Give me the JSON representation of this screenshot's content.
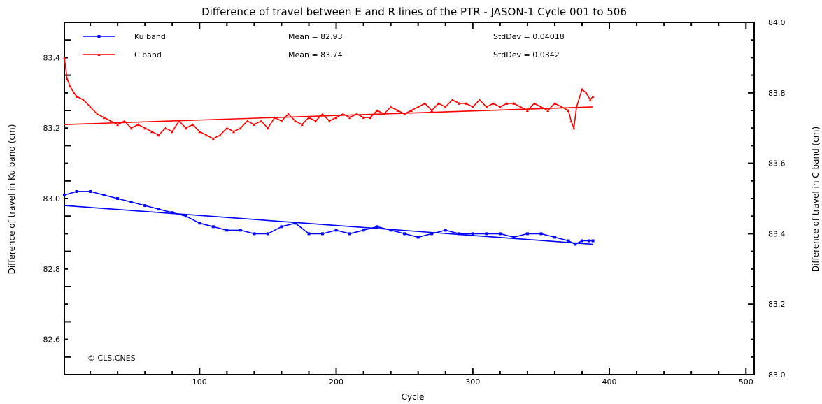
{
  "chart_data": {
    "type": "line",
    "title": "Difference of travel between E and R lines of the PTR - JASON-1 Cycle 001 to 506",
    "xlabel": "Cycle",
    "ylabel_left": "Difference of travel in Ku band (cm)",
    "ylabel_right": "Difference of travel in C band (cm)",
    "xlim": [
      1,
      506
    ],
    "ylim_left": [
      82.5,
      83.5
    ],
    "ylim_right": [
      83.0,
      84.0
    ],
    "x_ticks": [
      "100",
      "200",
      "300",
      "400",
      "500"
    ],
    "y_ticks_left": [
      "82.6",
      "82.8",
      "83.0",
      "83.2",
      "83.4"
    ],
    "y_ticks_right": [
      "83.0",
      "83.2",
      "83.4",
      "83.6",
      "83.8",
      "84.0"
    ],
    "grid": false,
    "legend_position": "top-left",
    "copyright": "© CLS,CNES",
    "series": [
      {
        "name": "Ku band",
        "axis": "left",
        "color": "#0000ff",
        "marker": "square",
        "mean_label": "Mean = 82.93",
        "std_label": "StdDev = 0.04018",
        "x": [
          1,
          10,
          20,
          30,
          40,
          50,
          60,
          70,
          80,
          90,
          100,
          110,
          120,
          130,
          140,
          150,
          160,
          170,
          180,
          190,
          200,
          210,
          220,
          230,
          240,
          250,
          260,
          270,
          280,
          290,
          300,
          310,
          320,
          330,
          340,
          350,
          360,
          370,
          375,
          380,
          385,
          388
        ],
        "values": [
          83.01,
          83.02,
          83.02,
          83.01,
          83.0,
          82.99,
          82.98,
          82.97,
          82.96,
          82.95,
          82.93,
          82.92,
          82.91,
          82.91,
          82.9,
          82.9,
          82.92,
          82.93,
          82.9,
          82.9,
          82.91,
          82.9,
          82.91,
          82.92,
          82.91,
          82.9,
          82.89,
          82.9,
          82.91,
          82.9,
          82.9,
          82.9,
          82.9,
          82.89,
          82.9,
          82.9,
          82.89,
          82.88,
          82.87,
          82.88,
          82.88,
          82.88
        ],
        "trend": {
          "x": [
            1,
            388
          ],
          "values": [
            82.98,
            82.87
          ]
        }
      },
      {
        "name": "C band",
        "axis": "right",
        "color": "#ff0000",
        "marker": "triangle",
        "mean_label": "Mean = 83.74",
        "std_label": "StdDev = 0.0342",
        "x": [
          1,
          3,
          5,
          8,
          10,
          15,
          20,
          25,
          30,
          35,
          40,
          45,
          50,
          55,
          60,
          65,
          70,
          75,
          80,
          85,
          90,
          95,
          100,
          105,
          110,
          115,
          120,
          125,
          130,
          135,
          140,
          145,
          150,
          155,
          160,
          165,
          170,
          175,
          180,
          185,
          190,
          195,
          200,
          205,
          210,
          215,
          220,
          225,
          230,
          235,
          240,
          245,
          250,
          255,
          260,
          265,
          270,
          275,
          280,
          285,
          290,
          295,
          300,
          305,
          310,
          315,
          320,
          325,
          330,
          335,
          340,
          345,
          350,
          355,
          360,
          365,
          370,
          372,
          374,
          376,
          380,
          383,
          386,
          388
        ],
        "values": [
          83.9,
          83.84,
          83.82,
          83.8,
          83.79,
          83.78,
          83.76,
          83.74,
          83.73,
          83.72,
          83.71,
          83.72,
          83.7,
          83.71,
          83.7,
          83.69,
          83.68,
          83.7,
          83.69,
          83.72,
          83.7,
          83.71,
          83.69,
          83.68,
          83.67,
          83.68,
          83.7,
          83.69,
          83.7,
          83.72,
          83.71,
          83.72,
          83.7,
          83.73,
          83.72,
          83.74,
          83.72,
          83.71,
          83.73,
          83.72,
          83.74,
          83.72,
          83.73,
          83.74,
          83.73,
          83.74,
          83.73,
          83.73,
          83.75,
          83.74,
          83.76,
          83.75,
          83.74,
          83.75,
          83.76,
          83.77,
          83.75,
          83.77,
          83.76,
          83.78,
          83.77,
          83.77,
          83.76,
          83.78,
          83.76,
          83.77,
          83.76,
          83.77,
          83.77,
          83.76,
          83.75,
          83.77,
          83.76,
          83.75,
          83.77,
          83.76,
          83.75,
          83.72,
          83.7,
          83.76,
          83.81,
          83.8,
          83.78,
          83.79
        ],
        "trend": {
          "x": [
            1,
            388
          ],
          "values": [
            83.71,
            83.76
          ]
        }
      }
    ]
  }
}
